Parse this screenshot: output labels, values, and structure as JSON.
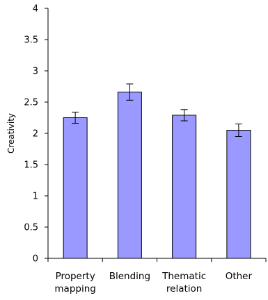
{
  "chart_data": {
    "type": "bar",
    "title": "",
    "xlabel": "",
    "ylabel": "Creativity",
    "ylim": [
      0,
      4
    ],
    "yticks": [
      0,
      0.5,
      1,
      1.5,
      2,
      2.5,
      3,
      3.5,
      4
    ],
    "categories": [
      [
        "Property",
        "mapping"
      ],
      [
        "Blending"
      ],
      [
        "Thematic",
        "relation"
      ],
      [
        "Other"
      ]
    ],
    "values": [
      2.25,
      2.66,
      2.29,
      2.05
    ],
    "error_bars": [
      0.09,
      0.13,
      0.09,
      0.1
    ],
    "grid": false,
    "legend": "none",
    "colors": {
      "bar_fill": "#9999ff",
      "bar_stroke": "#000000",
      "axis": "#000000"
    }
  }
}
